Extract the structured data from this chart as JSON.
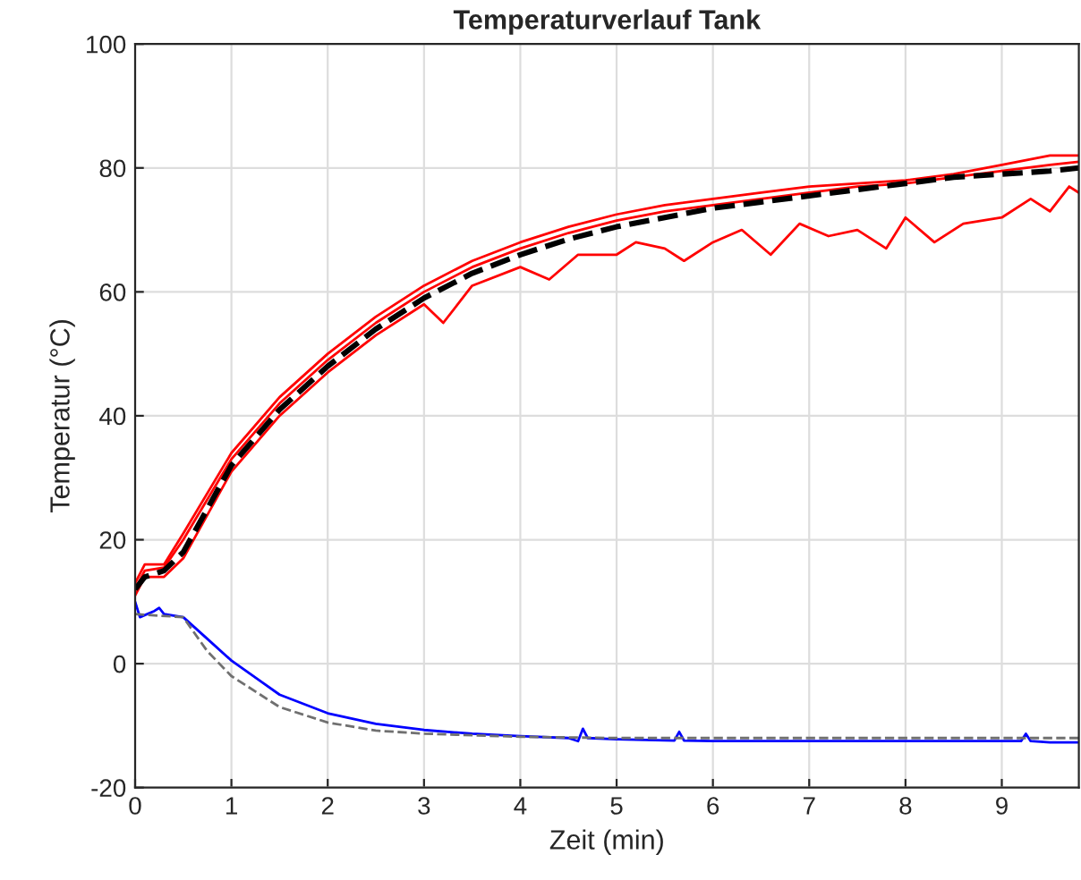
{
  "chart_data": {
    "type": "line",
    "title": "Temperaturverlauf Tank",
    "xlabel": "Zeit (min)",
    "ylabel": "Temperatur (°C)",
    "xlim": [
      0,
      9.8
    ],
    "xticks": [
      0,
      1,
      2,
      3,
      4,
      5,
      6,
      7,
      8,
      9
    ],
    "ylim": [
      -20,
      100
    ],
    "yticks": [
      -20,
      0,
      20,
      40,
      60,
      80,
      100
    ],
    "grid": true,
    "legend": false,
    "series": [
      {
        "color": "#ff0000",
        "line_style": "solid",
        "x": [
          0,
          0.1,
          0.3,
          0.5,
          1,
          1.5,
          2,
          2.5,
          3,
          3.5,
          4,
          4.5,
          5,
          5.5,
          6,
          6.5,
          7,
          7.5,
          8,
          8.5,
          9,
          9.5,
          9.8
        ],
        "values": [
          13,
          16,
          16,
          21,
          34,
          43,
          50,
          56,
          61,
          65,
          68,
          70.5,
          72.5,
          74,
          75,
          76,
          77,
          77.5,
          78,
          79,
          80.5,
          82,
          82
        ]
      },
      {
        "color": "#ff0000",
        "line_style": "solid",
        "x": [
          0,
          0.1,
          0.3,
          0.5,
          1,
          1.5,
          2,
          2.5,
          3,
          3.5,
          4,
          4.5,
          5,
          5.5,
          6,
          6.5,
          7,
          7.5,
          8,
          8.5,
          9,
          9.5,
          9.8
        ],
        "values": [
          12,
          15,
          15.5,
          20,
          33,
          42,
          49,
          55,
          60,
          64,
          67,
          69.5,
          71.5,
          73,
          74,
          75,
          76,
          77,
          77.5,
          78.5,
          79.5,
          80.5,
          81
        ]
      },
      {
        "color": "#ff0000",
        "line_style": "solid",
        "x": [
          0,
          0.1,
          0.3,
          0.5,
          1,
          1.5,
          2,
          2.5,
          3,
          3.2,
          3.5,
          4,
          4.3,
          4.6,
          5,
          5.2,
          5.5,
          5.7,
          6,
          6.3,
          6.6,
          6.9,
          7.2,
          7.5,
          7.8,
          8,
          8.3,
          8.6,
          9,
          9.3,
          9.5,
          9.7,
          9.8
        ],
        "values": [
          11,
          14,
          14,
          17,
          31,
          40,
          47,
          53,
          58,
          55,
          61,
          64,
          62,
          66,
          66,
          68,
          67,
          65,
          68,
          70,
          66,
          71,
          69,
          70,
          67,
          72,
          68,
          71,
          72,
          75,
          73,
          77,
          76
        ]
      },
      {
        "color": "#000000",
        "line_style": "dashed",
        "x": [
          0,
          0.1,
          0.3,
          0.5,
          1,
          1.5,
          2,
          2.5,
          3,
          3.5,
          4,
          4.5,
          5,
          5.5,
          6,
          6.5,
          7,
          7.5,
          8,
          8.5,
          9,
          9.5,
          9.8
        ],
        "values": [
          12,
          14,
          15,
          18,
          32,
          41,
          48,
          54,
          59,
          63,
          66,
          68.5,
          70.5,
          72,
          73.5,
          74.5,
          75.5,
          76.5,
          77.5,
          78.5,
          79,
          79.5,
          80
        ]
      },
      {
        "color": "#0000ff",
        "line_style": "solid",
        "x": [
          0,
          0.05,
          0.2,
          0.25,
          0.3,
          0.5,
          0.75,
          1,
          1.5,
          2,
          2.5,
          3,
          3.5,
          4,
          4.5,
          4.6,
          4.65,
          4.7,
          5,
          5.6,
          5.65,
          5.7,
          6,
          7,
          8,
          9.2,
          9.25,
          9.3,
          9.5,
          9.8
        ],
        "values": [
          10,
          7.5,
          8.5,
          9,
          8,
          7.5,
          4,
          0.5,
          -5,
          -8,
          -9.7,
          -10.7,
          -11.3,
          -11.7,
          -12,
          -12.5,
          -10.5,
          -12,
          -12.2,
          -12.4,
          -11,
          -12.4,
          -12.5,
          -12.5,
          -12.5,
          -12.5,
          -11.3,
          -12.5,
          -12.7,
          -12.7
        ]
      },
      {
        "color": "#707070",
        "line_style": "dashed",
        "x": [
          0,
          0.5,
          0.75,
          1,
          1.5,
          2,
          2.5,
          3,
          4,
          5,
          6,
          9.8
        ],
        "values": [
          8,
          7.5,
          2,
          -2,
          -7,
          -9.5,
          -10.8,
          -11.3,
          -11.8,
          -12,
          -12,
          -12
        ]
      }
    ]
  }
}
